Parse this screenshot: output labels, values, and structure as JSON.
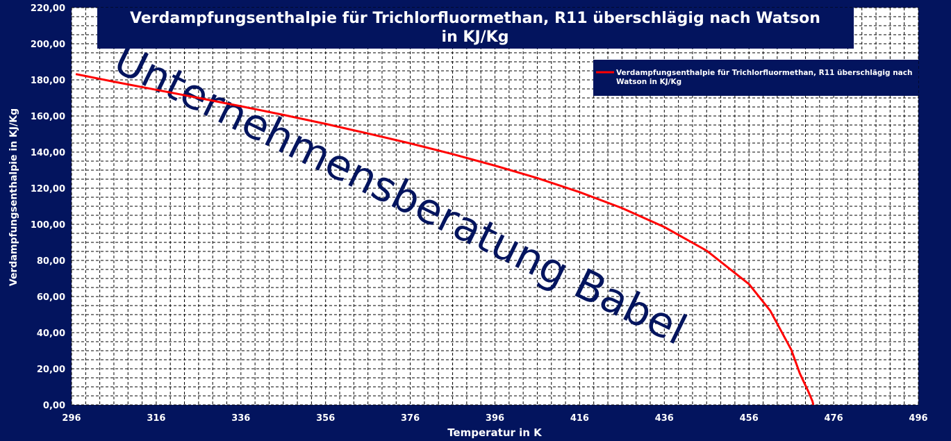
{
  "chart_data": {
    "type": "line",
    "title_line1": "Verdampfungsenthalpie für Trichlorfluormethan, R11 überschlägig nach Watson",
    "title_line2": "in KJ/Kg",
    "xlabel": "Temperatur in K",
    "ylabel": "Verdampfungsenthalpie  in KJ/Kg",
    "xlim": [
      296,
      496
    ],
    "ylim": [
      0,
      220
    ],
    "x_ticks": [
      "296",
      "316",
      "336",
      "356",
      "376",
      "396",
      "416",
      "436",
      "456",
      "476",
      "496"
    ],
    "y_ticks": [
      "0,00",
      "20,00",
      "40,00",
      "60,00",
      "80,00",
      "100,00",
      "120,00",
      "140,00",
      "160,00",
      "180,00",
      "200,00",
      "220,00"
    ],
    "grid": true,
    "legend_position": "top-right",
    "series": [
      {
        "name": "Verdampfungsenthalpie für Trichlorfluormethan, R11 überschlägig nach Watson in KJ/Kg",
        "name_line1": "Verdampfungsenthalpie für Trichlorfluormethan, R11 überschlägig nach",
        "name_line2": "Watson in KJ/Kg",
        "color": "#ff0000",
        "x": [
          297,
          306,
          316,
          326,
          336,
          346,
          356,
          366,
          376,
          386,
          396,
          406,
          416,
          426,
          436,
          446,
          456,
          461,
          466,
          468,
          470,
          471,
          471.2
        ],
        "y": [
          183.2,
          179.0,
          174.5,
          170.0,
          165.4,
          160.6,
          155.6,
          150.3,
          144.8,
          138.9,
          132.5,
          125.6,
          117.8,
          109.0,
          98.5,
          85.4,
          66.9,
          52.2,
          30.5,
          17.5,
          7.5,
          2.0,
          0.0
        ]
      }
    ]
  },
  "watermark": "Unternehmensberatung Babel",
  "colors": {
    "background": "#03145e",
    "plot_area": "#ffffff",
    "line": "#ff0000",
    "watermark": "#03145e"
  }
}
